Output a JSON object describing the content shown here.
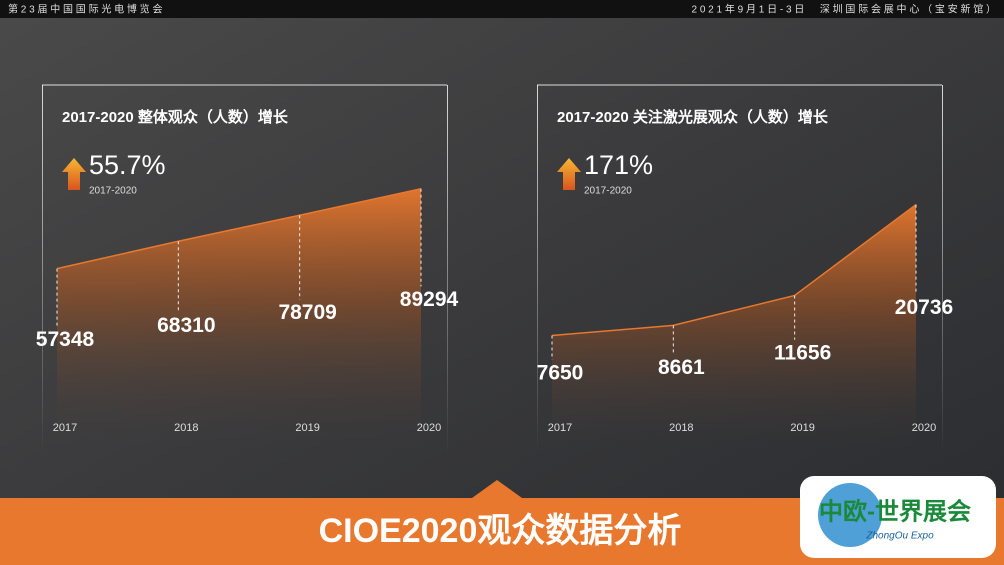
{
  "header": {
    "left": "第 2 3 届 中 国 国 际 光 电 博 览 会",
    "right": "2 0 2 1 年 9 月 1 日 - 3 日 　 深 圳 国 际 会 展 中 心 （ 宝 安 新 馆 ）"
  },
  "chart_data": [
    {
      "type": "area",
      "title": "2017-2020 整体观众（人数）增长",
      "annotation": {
        "growth": "55.7%",
        "period": "2017-2020"
      },
      "categories": [
        "2017",
        "2018",
        "2019",
        "2020"
      ],
      "values": [
        57348,
        68310,
        78709,
        89294
      ],
      "color": "#e8782e",
      "ylim": [
        0,
        100000
      ]
    },
    {
      "type": "area",
      "title": "2017-2020 关注激光展观众（人数）增长",
      "annotation": {
        "growth": "171%",
        "period": "2017-2020"
      },
      "categories": [
        "2017",
        "2018",
        "2019",
        "2020"
      ],
      "values": [
        7650,
        8661,
        11656,
        20736
      ],
      "color": "#e8782e",
      "ylim": [
        0,
        25000
      ]
    }
  ],
  "footer": {
    "title": "CIOE2020观众数据分析"
  },
  "logo": {
    "name": "中欧-世界展会",
    "subtitle": "ZhongOu Expo"
  }
}
